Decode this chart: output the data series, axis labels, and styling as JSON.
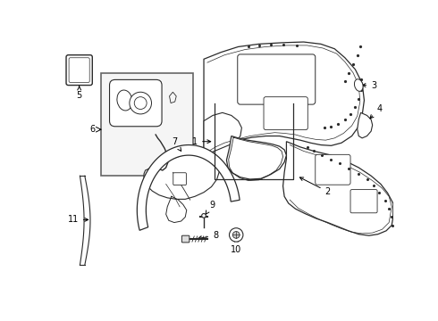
{
  "background_color": "#ffffff",
  "line_color": "#2a2a2a",
  "figure_width": 4.9,
  "figure_height": 3.6,
  "dpi": 100
}
